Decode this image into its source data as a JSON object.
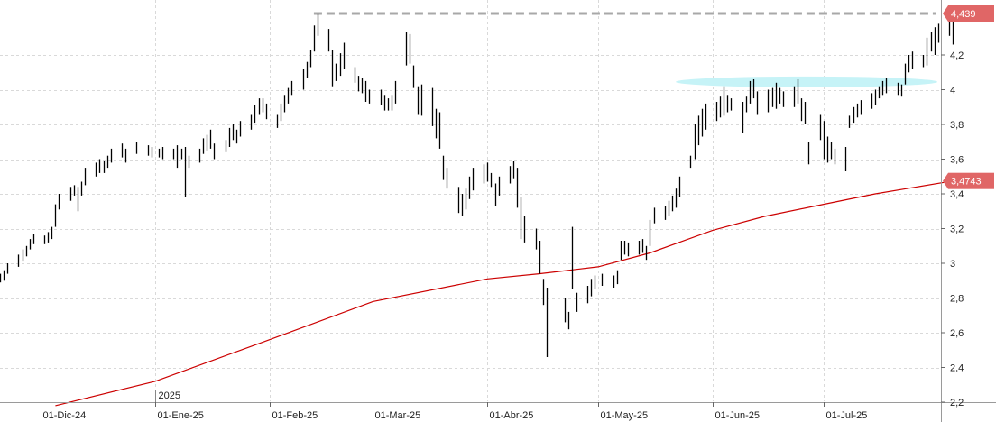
{
  "chart_data": {
    "type": "ohlc",
    "ylim": [
      2.2,
      4.5
    ],
    "y_ticks": [
      {
        "value": 2.2,
        "label": "2,2"
      },
      {
        "value": 2.4,
        "label": "2,4"
      },
      {
        "value": 2.6,
        "label": "2,6"
      },
      {
        "value": 2.8,
        "label": "2,8"
      },
      {
        "value": 3.0,
        "label": "3"
      },
      {
        "value": 3.2,
        "label": "3,2"
      },
      {
        "value": 3.4,
        "label": "3,4"
      },
      {
        "value": 3.6,
        "label": "3,6"
      },
      {
        "value": 3.8,
        "label": "3,8"
      },
      {
        "value": 4.0,
        "label": "4"
      },
      {
        "value": 4.2,
        "label": "4,2"
      }
    ],
    "x_ticks": [
      {
        "date": "2024-12-01",
        "label": "01-Dic-24"
      },
      {
        "date": "2025-01-01",
        "label": "01-Ene-25"
      },
      {
        "date": "2025-02-01",
        "label": "01-Feb-25"
      },
      {
        "date": "2025-03-01",
        "label": "01-Mar-25"
      },
      {
        "date": "2025-04-01",
        "label": "01-Abr-25"
      },
      {
        "date": "2025-05-01",
        "label": "01-May-25"
      },
      {
        "date": "2025-06-01",
        "label": "01-Jun-25"
      },
      {
        "date": "2025-07-01",
        "label": "01-Jul-25"
      }
    ],
    "year_label": "2025",
    "grid": true,
    "price_series": [
      {
        "date": "2024-11-20",
        "high": 2.94,
        "low": 2.89
      },
      {
        "date": "2024-11-21",
        "high": 2.96,
        "low": 2.9
      },
      {
        "date": "2024-11-22",
        "high": 3.0,
        "low": 2.94
      },
      {
        "date": "2024-11-25",
        "high": 3.05,
        "low": 2.98
      },
      {
        "date": "2024-11-26",
        "high": 3.08,
        "low": 3.01
      },
      {
        "date": "2024-11-27",
        "high": 3.1,
        "low": 3.04
      },
      {
        "date": "2024-11-28",
        "high": 3.14,
        "low": 3.08
      },
      {
        "date": "2024-11-29",
        "high": 3.17,
        "low": 3.11
      },
      {
        "date": "2024-12-02",
        "high": 3.16,
        "low": 3.11
      },
      {
        "date": "2024-12-03",
        "high": 3.18,
        "low": 3.12
      },
      {
        "date": "2024-12-04",
        "high": 3.21,
        "low": 3.14
      },
      {
        "date": "2024-12-05",
        "high": 3.34,
        "low": 3.21
      },
      {
        "date": "2024-12-06",
        "high": 3.4,
        "low": 3.31
      },
      {
        "date": "2024-12-09",
        "high": 3.44,
        "low": 3.36
      },
      {
        "date": "2024-12-10",
        "high": 3.45,
        "low": 3.39
      },
      {
        "date": "2024-12-11",
        "high": 3.44,
        "low": 3.3
      },
      {
        "date": "2024-12-12",
        "high": 3.47,
        "low": 3.39
      },
      {
        "date": "2024-12-13",
        "high": 3.55,
        "low": 3.45
      },
      {
        "date": "2024-12-16",
        "high": 3.58,
        "low": 3.5
      },
      {
        "date": "2024-12-17",
        "high": 3.6,
        "low": 3.52
      },
      {
        "date": "2024-12-18",
        "high": 3.59,
        "low": 3.52
      },
      {
        "date": "2024-12-19",
        "high": 3.62,
        "low": 3.55
      },
      {
        "date": "2024-12-20",
        "high": 3.66,
        "low": 3.58
      },
      {
        "date": "2024-12-23",
        "high": 3.69,
        "low": 3.61
      },
      {
        "date": "2024-12-24",
        "high": 3.66,
        "low": 3.58
      },
      {
        "date": "2024-12-27",
        "high": 3.7,
        "low": 3.63
      },
      {
        "date": "2024-12-30",
        "high": 3.68,
        "low": 3.62
      },
      {
        "date": "2024-12-31",
        "high": 3.67,
        "low": 3.61
      },
      {
        "date": "2025-01-02",
        "high": 3.66,
        "low": 3.61
      },
      {
        "date": "2025-01-03",
        "high": 3.67,
        "low": 3.6
      },
      {
        "date": "2025-01-06",
        "high": 3.66,
        "low": 3.6
      },
      {
        "date": "2025-01-07",
        "high": 3.68,
        "low": 3.55
      },
      {
        "date": "2025-01-08",
        "high": 3.66,
        "low": 3.6
      },
      {
        "date": "2025-01-09",
        "high": 3.67,
        "low": 3.38
      },
      {
        "date": "2025-01-10",
        "high": 3.62,
        "low": 3.55
      },
      {
        "date": "2025-01-13",
        "high": 3.66,
        "low": 3.58
      },
      {
        "date": "2025-01-14",
        "high": 3.72,
        "low": 3.63
      },
      {
        "date": "2025-01-15",
        "high": 3.74,
        "low": 3.65
      },
      {
        "date": "2025-01-16",
        "high": 3.77,
        "low": 3.66
      },
      {
        "date": "2025-01-17",
        "high": 3.69,
        "low": 3.6
      },
      {
        "date": "2025-01-20",
        "high": 3.71,
        "low": 3.64
      },
      {
        "date": "2025-01-21",
        "high": 3.78,
        "low": 3.67
      },
      {
        "date": "2025-01-22",
        "high": 3.8,
        "low": 3.71
      },
      {
        "date": "2025-01-23",
        "high": 3.77,
        "low": 3.69
      },
      {
        "date": "2025-01-24",
        "high": 3.82,
        "low": 3.73
      },
      {
        "date": "2025-01-27",
        "high": 3.86,
        "low": 3.77
      },
      {
        "date": "2025-01-28",
        "high": 3.91,
        "low": 3.81
      },
      {
        "date": "2025-01-29",
        "high": 3.95,
        "low": 3.86
      },
      {
        "date": "2025-01-30",
        "high": 3.95,
        "low": 3.87
      },
      {
        "date": "2025-01-31",
        "high": 3.92,
        "low": 3.83
      },
      {
        "date": "2025-02-03",
        "high": 3.86,
        "low": 3.78
      },
      {
        "date": "2025-02-04",
        "high": 3.92,
        "low": 3.82
      },
      {
        "date": "2025-02-05",
        "high": 3.97,
        "low": 3.87
      },
      {
        "date": "2025-02-06",
        "high": 4.01,
        "low": 3.92
      },
      {
        "date": "2025-02-07",
        "high": 4.05,
        "low": 3.97
      },
      {
        "date": "2025-02-10",
        "high": 4.12,
        "low": 4.0
      },
      {
        "date": "2025-02-11",
        "high": 4.16,
        "low": 4.07
      },
      {
        "date": "2025-02-12",
        "high": 4.23,
        "low": 4.13
      },
      {
        "date": "2025-02-13",
        "high": 4.37,
        "low": 4.22
      },
      {
        "date": "2025-02-14",
        "high": 4.44,
        "low": 4.31
      },
      {
        "date": "2025-02-17",
        "high": 4.35,
        "low": 4.22
      },
      {
        "date": "2025-02-18",
        "high": 4.23,
        "low": 4.02
      },
      {
        "date": "2025-02-19",
        "high": 4.15,
        "low": 4.05
      },
      {
        "date": "2025-02-20",
        "high": 4.21,
        "low": 4.08
      },
      {
        "date": "2025-02-21",
        "high": 4.27,
        "low": 4.12
      },
      {
        "date": "2025-02-24",
        "high": 4.13,
        "low": 4.04
      },
      {
        "date": "2025-02-25",
        "high": 4.08,
        "low": 3.99
      },
      {
        "date": "2025-02-26",
        "high": 4.07,
        "low": 3.98
      },
      {
        "date": "2025-02-27",
        "high": 4.05,
        "low": 3.93
      },
      {
        "date": "2025-02-28",
        "high": 4.0,
        "low": 3.92
      },
      {
        "date": "2025-03-03",
        "high": 4.0,
        "low": 3.91
      },
      {
        "date": "2025-03-04",
        "high": 3.97,
        "low": 3.88
      },
      {
        "date": "2025-03-05",
        "high": 3.95,
        "low": 3.88
      },
      {
        "date": "2025-03-06",
        "high": 3.97,
        "low": 3.88
      },
      {
        "date": "2025-03-07",
        "high": 4.05,
        "low": 3.92
      },
      {
        "date": "2025-03-10",
        "high": 4.33,
        "low": 4.14
      },
      {
        "date": "2025-03-11",
        "high": 4.32,
        "low": 4.15
      },
      {
        "date": "2025-03-12",
        "high": 4.14,
        "low": 4.01
      },
      {
        "date": "2025-03-13",
        "high": 4.02,
        "low": 3.86
      },
      {
        "date": "2025-03-14",
        "high": 4.03,
        "low": 3.85
      },
      {
        "date": "2025-03-17",
        "high": 4.01,
        "low": 3.79
      },
      {
        "date": "2025-03-18",
        "high": 3.89,
        "low": 3.72
      },
      {
        "date": "2025-03-19",
        "high": 3.87,
        "low": 3.66
      },
      {
        "date": "2025-03-20",
        "high": 3.62,
        "low": 3.48
      },
      {
        "date": "2025-03-21",
        "high": 3.55,
        "low": 3.43
      },
      {
        "date": "2025-03-24",
        "high": 3.44,
        "low": 3.29
      },
      {
        "date": "2025-03-25",
        "high": 3.4,
        "low": 3.27
      },
      {
        "date": "2025-03-26",
        "high": 3.43,
        "low": 3.31
      },
      {
        "date": "2025-03-27",
        "high": 3.5,
        "low": 3.37
      },
      {
        "date": "2025-03-28",
        "high": 3.55,
        "low": 3.42
      },
      {
        "date": "2025-03-31",
        "high": 3.57,
        "low": 3.46
      },
      {
        "date": "2025-04-01",
        "high": 3.58,
        "low": 3.47
      },
      {
        "date": "2025-04-02",
        "high": 3.52,
        "low": 3.44
      },
      {
        "date": "2025-04-03",
        "high": 3.46,
        "low": 3.33
      },
      {
        "date": "2025-04-04",
        "high": 3.5,
        "low": 3.39
      },
      {
        "date": "2025-04-07",
        "high": 3.56,
        "low": 3.46
      },
      {
        "date": "2025-04-08",
        "high": 3.59,
        "low": 3.49
      },
      {
        "date": "2025-04-09",
        "high": 3.55,
        "low": 3.32
      },
      {
        "date": "2025-04-10",
        "high": 3.38,
        "low": 3.14
      },
      {
        "date": "2025-04-11",
        "high": 3.27,
        "low": 3.12
      },
      {
        "date": "2025-04-14",
        "high": 3.2,
        "low": 3.08
      },
      {
        "date": "2025-04-15",
        "high": 3.13,
        "low": 2.94
      },
      {
        "date": "2025-04-16",
        "high": 2.91,
        "low": 2.76
      },
      {
        "date": "2025-04-17",
        "high": 2.86,
        "low": 2.46
      },
      {
        "date": "2025-04-22",
        "high": 2.8,
        "low": 2.66
      },
      {
        "date": "2025-04-23",
        "high": 2.72,
        "low": 2.62
      },
      {
        "date": "2025-04-24",
        "high": 3.21,
        "low": 2.85
      },
      {
        "date": "2025-04-25",
        "high": 2.83,
        "low": 2.72
      },
      {
        "date": "2025-04-28",
        "high": 2.87,
        "low": 2.77
      },
      {
        "date": "2025-04-29",
        "high": 2.91,
        "low": 2.81
      },
      {
        "date": "2025-04-30",
        "high": 2.93,
        "low": 2.85
      },
      {
        "date": "2025-05-02",
        "high": 2.94,
        "low": 2.87
      },
      {
        "date": "2025-05-05",
        "high": 2.93,
        "low": 2.86
      },
      {
        "date": "2025-05-06",
        "high": 2.96,
        "low": 2.88
      },
      {
        "date": "2025-05-07",
        "high": 3.13,
        "low": 3.02
      },
      {
        "date": "2025-05-08",
        "high": 3.13,
        "low": 3.05
      },
      {
        "date": "2025-05-09",
        "high": 3.12,
        "low": 3.04
      },
      {
        "date": "2025-05-12",
        "high": 3.13,
        "low": 3.05
      },
      {
        "date": "2025-05-13",
        "high": 3.14,
        "low": 3.06
      },
      {
        "date": "2025-05-14",
        "high": 3.1,
        "low": 3.02
      },
      {
        "date": "2025-05-15",
        "high": 3.25,
        "low": 3.1
      },
      {
        "date": "2025-05-16",
        "high": 3.32,
        "low": 3.23
      },
      {
        "date": "2025-05-19",
        "high": 3.33,
        "low": 3.25
      },
      {
        "date": "2025-05-20",
        "high": 3.36,
        "low": 3.27
      },
      {
        "date": "2025-05-21",
        "high": 3.39,
        "low": 3.3
      },
      {
        "date": "2025-05-22",
        "high": 3.43,
        "low": 3.32
      },
      {
        "date": "2025-05-23",
        "high": 3.5,
        "low": 3.38
      },
      {
        "date": "2025-05-26",
        "high": 3.62,
        "low": 3.55
      },
      {
        "date": "2025-05-27",
        "high": 3.8,
        "low": 3.6
      },
      {
        "date": "2025-05-28",
        "high": 3.85,
        "low": 3.68
      },
      {
        "date": "2025-05-29",
        "high": 3.89,
        "low": 3.73
      },
      {
        "date": "2025-05-30",
        "high": 3.92,
        "low": 3.77
      },
      {
        "date": "2025-06-02",
        "high": 3.93,
        "low": 3.82
      },
      {
        "date": "2025-06-03",
        "high": 3.96,
        "low": 3.84
      },
      {
        "date": "2025-06-04",
        "high": 4.02,
        "low": 3.85
      },
      {
        "date": "2025-06-05",
        "high": 3.97,
        "low": 3.87
      },
      {
        "date": "2025-06-06",
        "high": 3.95,
        "low": 3.88
      },
      {
        "date": "2025-06-09",
        "high": 3.93,
        "low": 3.75
      },
      {
        "date": "2025-06-10",
        "high": 3.96,
        "low": 3.87
      },
      {
        "date": "2025-06-11",
        "high": 4.05,
        "low": 3.92
      },
      {
        "date": "2025-06-12",
        "high": 4.06,
        "low": 3.95
      },
      {
        "date": "2025-06-13",
        "high": 3.99,
        "low": 3.86
      },
      {
        "date": "2025-06-16",
        "high": 4.0,
        "low": 3.87
      },
      {
        "date": "2025-06-17",
        "high": 4.01,
        "low": 3.9
      },
      {
        "date": "2025-06-18",
        "high": 4.04,
        "low": 3.89
      },
      {
        "date": "2025-06-19",
        "high": 4.01,
        "low": 3.92
      },
      {
        "date": "2025-06-20",
        "high": 3.99,
        "low": 3.9
      },
      {
        "date": "2025-06-23",
        "high": 4.02,
        "low": 3.9
      },
      {
        "date": "2025-06-24",
        "high": 4.06,
        "low": 3.92
      },
      {
        "date": "2025-06-25",
        "high": 3.95,
        "low": 3.82
      },
      {
        "date": "2025-06-26",
        "high": 3.93,
        "low": 3.8
      },
      {
        "date": "2025-06-27",
        "high": 3.7,
        "low": 3.57
      },
      {
        "date": "2025-06-30",
        "high": 3.86,
        "low": 3.71
      },
      {
        "date": "2025-07-01",
        "high": 3.82,
        "low": 3.6
      },
      {
        "date": "2025-07-02",
        "high": 3.73,
        "low": 3.58
      },
      {
        "date": "2025-07-03",
        "high": 3.7,
        "low": 3.6
      },
      {
        "date": "2025-07-04",
        "high": 3.66,
        "low": 3.57
      },
      {
        "date": "2025-07-07",
        "high": 3.67,
        "low": 3.53
      },
      {
        "date": "2025-07-08",
        "high": 3.85,
        "low": 3.78
      },
      {
        "date": "2025-07-09",
        "high": 3.9,
        "low": 3.81
      },
      {
        "date": "2025-07-10",
        "high": 3.92,
        "low": 3.84
      },
      {
        "date": "2025-07-11",
        "high": 3.94,
        "low": 3.86
      },
      {
        "date": "2025-07-14",
        "high": 3.98,
        "low": 3.89
      },
      {
        "date": "2025-07-15",
        "high": 4.0,
        "low": 3.91
      },
      {
        "date": "2025-07-16",
        "high": 4.02,
        "low": 3.95
      },
      {
        "date": "2025-07-17",
        "high": 4.05,
        "low": 3.97
      },
      {
        "date": "2025-07-18",
        "high": 4.07,
        "low": 3.98
      },
      {
        "date": "2025-07-21",
        "high": 4.04,
        "low": 3.97
      },
      {
        "date": "2025-07-22",
        "high": 4.03,
        "low": 3.96
      },
      {
        "date": "2025-07-23",
        "high": 4.15,
        "low": 4.03
      },
      {
        "date": "2025-07-24",
        "high": 4.2,
        "low": 4.1
      },
      {
        "date": "2025-07-25",
        "high": 4.22,
        "low": 4.12
      },
      {
        "date": "2025-07-28",
        "high": 4.2,
        "low": 4.13
      },
      {
        "date": "2025-07-29",
        "high": 4.3,
        "low": 4.14
      },
      {
        "date": "2025-07-30",
        "high": 4.33,
        "low": 4.22
      },
      {
        "date": "2025-07-31",
        "high": 4.36,
        "low": 4.2
      },
      {
        "date": "2025-08-01",
        "high": 4.38,
        "low": 4.27
      },
      {
        "date": "2025-08-04",
        "high": 4.42,
        "low": 4.31
      },
      {
        "date": "2025-08-05",
        "high": 4.45,
        "low": 4.26
      }
    ],
    "moving_average": {
      "color": "#cc0000",
      "points": [
        {
          "date": "2024-12-05",
          "value": 2.18
        },
        {
          "date": "2025-01-01",
          "value": 2.32
        },
        {
          "date": "2025-02-01",
          "value": 2.56
        },
        {
          "date": "2025-03-01",
          "value": 2.78
        },
        {
          "date": "2025-04-01",
          "value": 2.91
        },
        {
          "date": "2025-04-15",
          "value": 2.94
        },
        {
          "date": "2025-05-01",
          "value": 2.98
        },
        {
          "date": "2025-05-15",
          "value": 3.06
        },
        {
          "date": "2025-06-01",
          "value": 3.19
        },
        {
          "date": "2025-06-15",
          "value": 3.27
        },
        {
          "date": "2025-07-01",
          "value": 3.34
        },
        {
          "date": "2025-07-15",
          "value": 3.4
        },
        {
          "date": "2025-08-05",
          "value": 3.4743
        }
      ]
    },
    "resistance_line": {
      "value": 4.439,
      "from_date": "2025-02-13",
      "to_date": "2025-08-05",
      "color": "#a8a8a8"
    },
    "highlight_zone": {
      "value": 4.045,
      "from_date": "2025-05-22",
      "to_date": "2025-08-08",
      "color": "#c6f3f7"
    },
    "price_labels": [
      {
        "label": "4,439",
        "value": 4.439,
        "color": "#e06666"
      },
      {
        "label": "3,4743",
        "value": 3.4743,
        "color": "#e06666"
      }
    ]
  }
}
